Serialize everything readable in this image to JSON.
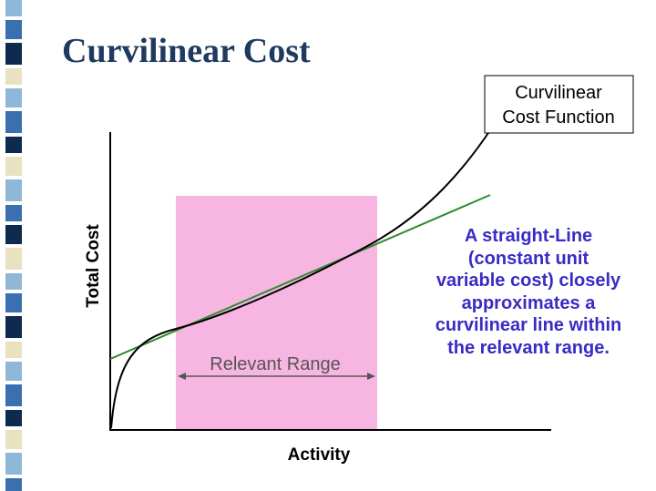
{
  "slide": {
    "title": "Curvilinear Cost"
  },
  "diagram": {
    "axis_y_label": "Total Cost",
    "axis_x_label": "Activity",
    "callout_lines": [
      "Curvilinear",
      "Cost Function"
    ],
    "range_label": "Relevant Range",
    "note_lines": [
      "A straight-Line",
      "(constant unit",
      "variable cost) closely",
      "approximates a",
      "curvilinear line within",
      "the relevant range."
    ]
  },
  "colors": {
    "title": "#1f3a60",
    "relevant_range_fill": "#f7b6e2",
    "straight_line": "#2e8b2e",
    "curve": "#000000",
    "note_text": "#3a2bc4",
    "stripe_light": "#8fb8d8",
    "stripe_mid": "#3a6fb0",
    "stripe_dark": "#0e2a4e",
    "stripe_pale": "#e8e2c0"
  }
}
